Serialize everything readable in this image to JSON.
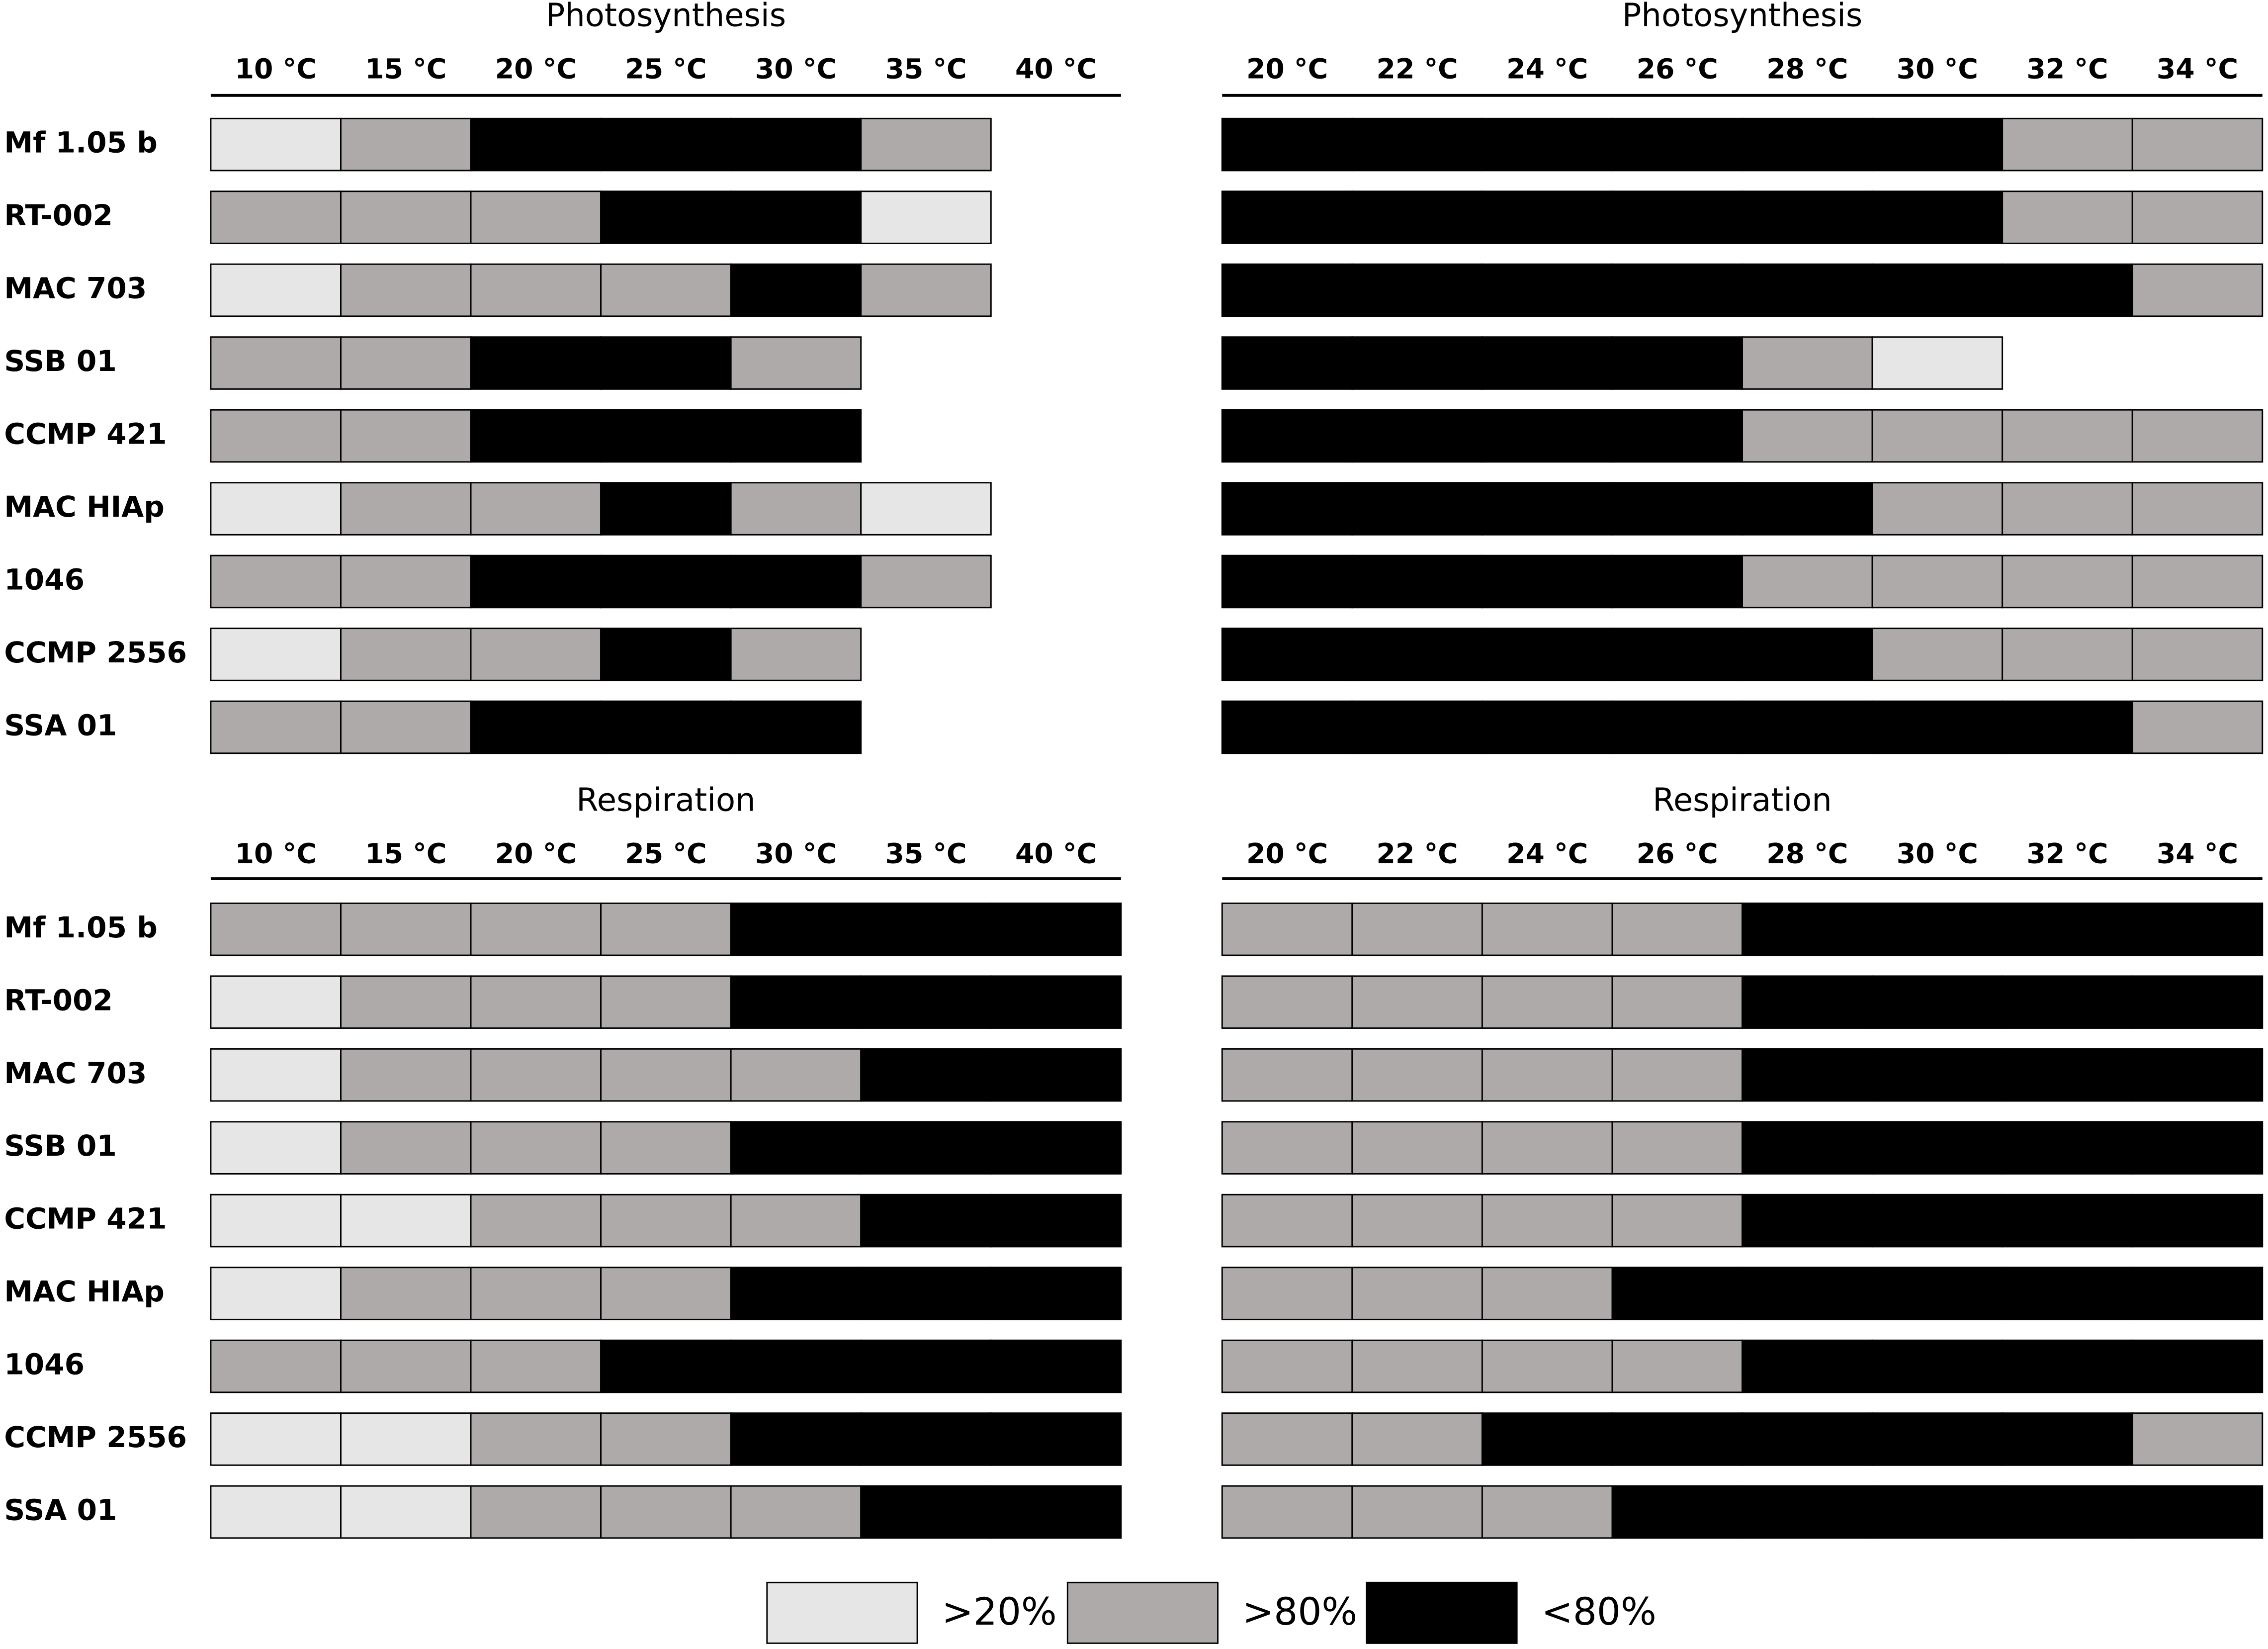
{
  "chart_data": [
    {
      "type": "heatmap",
      "title": "Photosynthesis",
      "x": [
        "10 °C",
        "15  °C",
        "20 °C",
        "25 °C",
        "30 °C",
        "35 °C",
        "40 °C"
      ],
      "rows": [
        "Mf 1.05 b",
        "RT-002",
        "MAC 703",
        "SSB 01",
        "CCMP 421",
        "MAC HIAp",
        "1046",
        "CCMP 2556",
        "SSA 01"
      ],
      "values": [
        [
          0,
          1,
          2,
          2,
          2,
          1,
          null
        ],
        [
          1,
          1,
          1,
          2,
          2,
          0,
          null
        ],
        [
          0,
          1,
          1,
          1,
          2,
          1,
          null
        ],
        [
          1,
          1,
          2,
          2,
          1,
          null,
          null
        ],
        [
          1,
          1,
          2,
          2,
          2,
          null,
          null
        ],
        [
          0,
          1,
          1,
          2,
          1,
          0,
          null
        ],
        [
          1,
          1,
          2,
          2,
          2,
          1,
          null
        ],
        [
          0,
          1,
          1,
          2,
          1,
          null,
          null
        ],
        [
          1,
          1,
          2,
          2,
          2,
          null,
          null
        ]
      ]
    },
    {
      "type": "heatmap",
      "title": "Photosynthesis",
      "x": [
        "20 °C",
        "22  °C",
        "24 °C",
        "26 °C",
        "28 °C",
        "30 °C",
        "32 °C",
        "34 °C"
      ],
      "values": [
        [
          2,
          2,
          2,
          2,
          2,
          2,
          1,
          1
        ],
        [
          2,
          2,
          2,
          2,
          2,
          2,
          1,
          1
        ],
        [
          2,
          2,
          2,
          2,
          2,
          2,
          2,
          1
        ],
        [
          2,
          2,
          2,
          2,
          1,
          0,
          null,
          null
        ],
        [
          2,
          2,
          2,
          2,
          1,
          1,
          1,
          1
        ],
        [
          2,
          2,
          2,
          2,
          2,
          1,
          1,
          1
        ],
        [
          2,
          2,
          2,
          2,
          1,
          1,
          1,
          1
        ],
        [
          2,
          2,
          2,
          2,
          2,
          1,
          1,
          1
        ],
        [
          2,
          2,
          2,
          2,
          2,
          2,
          2,
          1
        ]
      ]
    },
    {
      "type": "heatmap",
      "title": "Respiration",
      "x": [
        "10 °C",
        "15  °C",
        "20 °C",
        "25 °C",
        "30 °C",
        "35 °C",
        "40 °C"
      ],
      "rows": [
        "Mf 1.05 b",
        "RT-002",
        "MAC 703",
        "SSB 01",
        "CCMP 421",
        "MAC HIAp",
        "1046",
        "CCMP 2556",
        "SSA 01"
      ],
      "values": [
        [
          1,
          1,
          1,
          1,
          2,
          2,
          2
        ],
        [
          0,
          1,
          1,
          1,
          2,
          2,
          2
        ],
        [
          0,
          1,
          1,
          1,
          1,
          2,
          2
        ],
        [
          0,
          1,
          1,
          1,
          2,
          2,
          2
        ],
        [
          0,
          0,
          1,
          1,
          1,
          2,
          2
        ],
        [
          0,
          1,
          1,
          1,
          2,
          2,
          2
        ],
        [
          1,
          1,
          1,
          2,
          2,
          2,
          2
        ],
        [
          0,
          0,
          1,
          1,
          2,
          2,
          2
        ],
        [
          0,
          0,
          1,
          1,
          1,
          2,
          2
        ]
      ]
    },
    {
      "type": "heatmap",
      "title": "Respiration",
      "x": [
        "20 °C",
        "22  °C",
        "24 °C",
        "26 °C",
        "28 °C",
        "30 °C",
        "32 °C",
        "34 °C"
      ],
      "values": [
        [
          1,
          1,
          1,
          1,
          2,
          2,
          2,
          2
        ],
        [
          1,
          1,
          1,
          1,
          2,
          2,
          2,
          2
        ],
        [
          1,
          1,
          1,
          1,
          2,
          2,
          2,
          2
        ],
        [
          1,
          1,
          1,
          1,
          2,
          2,
          2,
          2
        ],
        [
          1,
          1,
          1,
          1,
          2,
          2,
          2,
          2
        ],
        [
          1,
          1,
          1,
          2,
          2,
          2,
          2,
          2
        ],
        [
          1,
          1,
          1,
          1,
          2,
          2,
          2,
          2
        ],
        [
          1,
          1,
          2,
          2,
          2,
          2,
          2,
          1
        ],
        [
          1,
          1,
          1,
          2,
          2,
          2,
          2,
          2
        ]
      ]
    }
  ],
  "legend": [
    {
      "label": ">20%",
      "color": "#e6e6e6"
    },
    {
      "label": ">80%",
      "color": "#aeaaaa"
    },
    {
      "label": "<80%",
      "color": "#000000"
    }
  ]
}
